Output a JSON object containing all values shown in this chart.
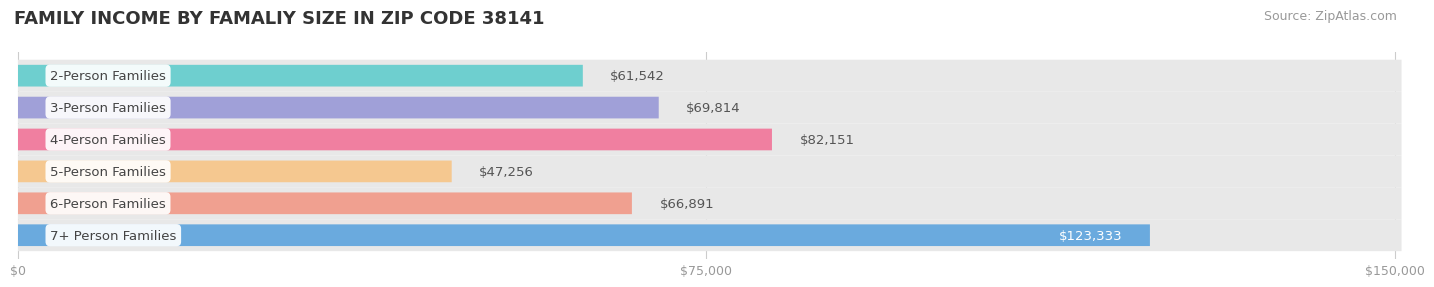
{
  "title": "FAMILY INCOME BY FAMALIY SIZE IN ZIP CODE 38141",
  "source": "Source: ZipAtlas.com",
  "categories": [
    "2-Person Families",
    "3-Person Families",
    "4-Person Families",
    "5-Person Families",
    "6-Person Families",
    "7+ Person Families"
  ],
  "values": [
    61542,
    69814,
    82151,
    47256,
    66891,
    123333
  ],
  "bar_colors": [
    "#6ecfcf",
    "#a0a0d8",
    "#f07fa0",
    "#f5c890",
    "#f0a090",
    "#6aaade"
  ],
  "xlim": [
    0,
    150000
  ],
  "xticks": [
    0,
    75000,
    150000
  ],
  "xticklabels": [
    "$0",
    "$75,000",
    "$150,000"
  ],
  "background_color": "#ffffff",
  "row_bg_color": "#e8e8e8",
  "title_fontsize": 13,
  "source_fontsize": 9,
  "bar_label_fontsize": 9.5,
  "category_fontsize": 9.5
}
